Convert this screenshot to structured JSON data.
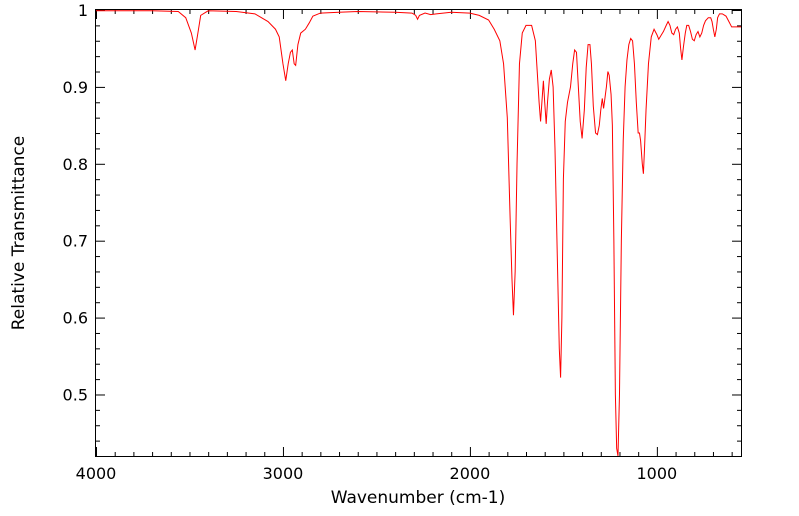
{
  "chart_data": {
    "type": "line",
    "title": "",
    "xlabel": "Wavenumber (cm-1)",
    "ylabel": "Relative Transmittance",
    "xlim": [
      4000,
      550
    ],
    "ylim": [
      0.42,
      1.0
    ],
    "x_ticks": [
      4000,
      3000,
      2000,
      1000
    ],
    "x_tick_labels": [
      "4000",
      "3000",
      "2000",
      "1000"
    ],
    "y_ticks": [
      0.5,
      0.6,
      0.7,
      0.8,
      0.9,
      1.0
    ],
    "y_tick_labels": [
      "0.5",
      "0.6",
      "0.7",
      "0.8",
      "0.9",
      "1"
    ],
    "grid": false,
    "legend": "none",
    "series": [
      {
        "color": "#ff0000",
        "points": [
          [
            4000,
            0.999
          ],
          [
            3700,
            0.999
          ],
          [
            3560,
            0.998
          ],
          [
            3520,
            0.99
          ],
          [
            3490,
            0.97
          ],
          [
            3470,
            0.948
          ],
          [
            3455,
            0.97
          ],
          [
            3440,
            0.993
          ],
          [
            3400,
            0.999
          ],
          [
            3250,
            0.998
          ],
          [
            3150,
            0.995
          ],
          [
            3080,
            0.985
          ],
          [
            3040,
            0.975
          ],
          [
            3020,
            0.965
          ],
          [
            3000,
            0.93
          ],
          [
            2985,
            0.908
          ],
          [
            2972,
            0.93
          ],
          [
            2960,
            0.945
          ],
          [
            2950,
            0.948
          ],
          [
            2940,
            0.93
          ],
          [
            2932,
            0.928
          ],
          [
            2920,
            0.955
          ],
          [
            2905,
            0.97
          ],
          [
            2880,
            0.975
          ],
          [
            2860,
            0.983
          ],
          [
            2840,
            0.992
          ],
          [
            2800,
            0.996
          ],
          [
            2700,
            0.997
          ],
          [
            2600,
            0.998
          ],
          [
            2400,
            0.997
          ],
          [
            2310,
            0.996
          ],
          [
            2290,
            0.993
          ],
          [
            2280,
            0.988
          ],
          [
            2270,
            0.993
          ],
          [
            2240,
            0.996
          ],
          [
            2210,
            0.994
          ],
          [
            2180,
            0.995
          ],
          [
            2100,
            0.997
          ],
          [
            2000,
            0.996
          ],
          [
            1950,
            0.993
          ],
          [
            1900,
            0.987
          ],
          [
            1870,
            0.975
          ],
          [
            1840,
            0.96
          ],
          [
            1820,
            0.93
          ],
          [
            1800,
            0.86
          ],
          [
            1785,
            0.73
          ],
          [
            1775,
            0.65
          ],
          [
            1767,
            0.603
          ],
          [
            1758,
            0.66
          ],
          [
            1748,
            0.8
          ],
          [
            1735,
            0.93
          ],
          [
            1720,
            0.97
          ],
          [
            1700,
            0.98
          ],
          [
            1670,
            0.98
          ],
          [
            1650,
            0.96
          ],
          [
            1640,
            0.92
          ],
          [
            1630,
            0.88
          ],
          [
            1622,
            0.855
          ],
          [
            1615,
            0.88
          ],
          [
            1607,
            0.908
          ],
          [
            1600,
            0.88
          ],
          [
            1592,
            0.852
          ],
          [
            1585,
            0.88
          ],
          [
            1575,
            0.91
          ],
          [
            1565,
            0.922
          ],
          [
            1555,
            0.9
          ],
          [
            1545,
            0.82
          ],
          [
            1530,
            0.65
          ],
          [
            1522,
            0.56
          ],
          [
            1515,
            0.522
          ],
          [
            1508,
            0.6
          ],
          [
            1500,
            0.78
          ],
          [
            1490,
            0.855
          ],
          [
            1478,
            0.88
          ],
          [
            1462,
            0.9
          ],
          [
            1450,
            0.93
          ],
          [
            1440,
            0.948
          ],
          [
            1430,
            0.945
          ],
          [
            1420,
            0.9
          ],
          [
            1410,
            0.855
          ],
          [
            1400,
            0.833
          ],
          [
            1388,
            0.87
          ],
          [
            1378,
            0.925
          ],
          [
            1368,
            0.955
          ],
          [
            1358,
            0.955
          ],
          [
            1350,
            0.93
          ],
          [
            1340,
            0.875
          ],
          [
            1328,
            0.84
          ],
          [
            1318,
            0.838
          ],
          [
            1308,
            0.85
          ],
          [
            1300,
            0.87
          ],
          [
            1292,
            0.885
          ],
          [
            1285,
            0.872
          ],
          [
            1278,
            0.885
          ],
          [
            1270,
            0.9
          ],
          [
            1262,
            0.92
          ],
          [
            1255,
            0.915
          ],
          [
            1245,
            0.89
          ],
          [
            1238,
            0.85
          ],
          [
            1230,
            0.7
          ],
          [
            1222,
            0.5
          ],
          [
            1215,
            0.43
          ],
          [
            1208,
            0.42
          ],
          [
            1200,
            0.5
          ],
          [
            1190,
            0.7
          ],
          [
            1180,
            0.83
          ],
          [
            1170,
            0.9
          ],
          [
            1160,
            0.935
          ],
          [
            1150,
            0.955
          ],
          [
            1140,
            0.963
          ],
          [
            1130,
            0.96
          ],
          [
            1120,
            0.93
          ],
          [
            1110,
            0.88
          ],
          [
            1100,
            0.84
          ],
          [
            1093,
            0.84
          ],
          [
            1087,
            0.83
          ],
          [
            1078,
            0.8
          ],
          [
            1072,
            0.787
          ],
          [
            1066,
            0.82
          ],
          [
            1058,
            0.87
          ],
          [
            1045,
            0.93
          ],
          [
            1030,
            0.965
          ],
          [
            1015,
            0.975
          ],
          [
            1000,
            0.968
          ],
          [
            990,
            0.962
          ],
          [
            980,
            0.966
          ],
          [
            965,
            0.972
          ],
          [
            950,
            0.98
          ],
          [
            940,
            0.985
          ],
          [
            930,
            0.98
          ],
          [
            920,
            0.97
          ],
          [
            910,
            0.968
          ],
          [
            900,
            0.975
          ],
          [
            890,
            0.978
          ],
          [
            880,
            0.97
          ],
          [
            873,
            0.95
          ],
          [
            866,
            0.935
          ],
          [
            858,
            0.952
          ],
          [
            848,
            0.97
          ],
          [
            840,
            0.98
          ],
          [
            830,
            0.98
          ],
          [
            820,
            0.972
          ],
          [
            810,
            0.962
          ],
          [
            800,
            0.96
          ],
          [
            790,
            0.968
          ],
          [
            780,
            0.972
          ],
          [
            770,
            0.965
          ],
          [
            760,
            0.97
          ],
          [
            750,
            0.98
          ],
          [
            740,
            0.986
          ],
          [
            725,
            0.99
          ],
          [
            712,
            0.99
          ],
          [
            705,
            0.985
          ],
          [
            698,
            0.975
          ],
          [
            690,
            0.965
          ],
          [
            682,
            0.975
          ],
          [
            675,
            0.99
          ],
          [
            665,
            0.995
          ],
          [
            650,
            0.995
          ],
          [
            630,
            0.992
          ],
          [
            615,
            0.985
          ],
          [
            600,
            0.978
          ],
          [
            580,
            0.978
          ],
          [
            560,
            0.978
          ],
          [
            550,
            0.978
          ]
        ]
      }
    ]
  }
}
